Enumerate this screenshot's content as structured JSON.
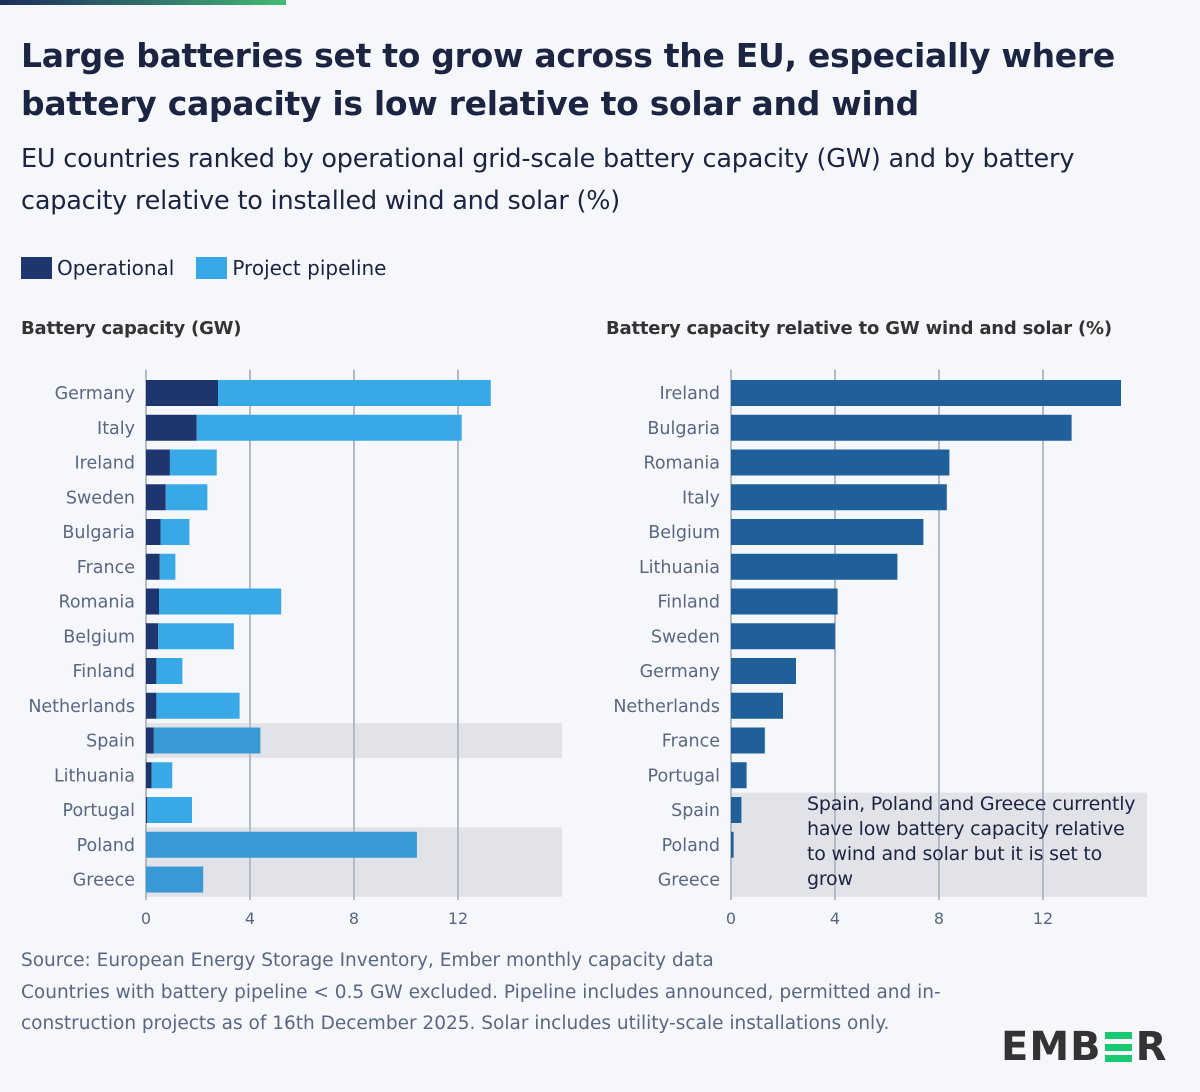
{
  "header": {
    "title": "Large batteries set to grow across the EU, especially where battery capacity is low relative to solar and wind",
    "subtitle": "EU countries ranked by operational grid-scale battery capacity (GW) and by battery capacity relative to installed wind and solar (%)"
  },
  "legend": [
    {
      "label": "Operational",
      "color": "#1f356e"
    },
    {
      "label": "Project pipeline",
      "color": "#38a8e6"
    }
  ],
  "colors": {
    "operational": "#1f356e",
    "pipeline": "#38a8e6",
    "pipeline_highlight": "#3899d4",
    "ratio_bar": "#1f5f9a",
    "highlight_band": "#e1e3e8",
    "gridline": "#b3bac8",
    "accent_green": "#19c971"
  },
  "annotation": "Spain, Poland and Greece currently have low battery capacity relative to wind and solar but it is set to grow",
  "footer": {
    "source": "Source: European Energy Storage Inventory, Ember monthly capacity data",
    "note": "Countries with battery pipeline < 0.5 GW excluded. Pipeline includes announced, permitted and in-construction projects as of 16th December 2025. Solar includes utility-scale installations only.",
    "logo": {
      "prefix": "EMB",
      "suffix": "R"
    }
  },
  "chart_data": [
    {
      "type": "bar",
      "orientation": "horizontal",
      "stacked": true,
      "title": "Battery capacity (GW)",
      "xlabel": "",
      "ylabel": "",
      "xlim": [
        0,
        16
      ],
      "xticks": [
        0,
        4,
        8,
        12
      ],
      "grid": true,
      "highlighted": [
        "Spain",
        "Poland",
        "Greece"
      ],
      "categories": [
        "Germany",
        "Italy",
        "Ireland",
        "Sweden",
        "Bulgaria",
        "France",
        "Romania",
        "Belgium",
        "Finland",
        "Netherlands",
        "Spain",
        "Lithuania",
        "Portugal",
        "Poland",
        "Greece"
      ],
      "series": [
        {
          "name": "Operational",
          "values": [
            2.77,
            1.95,
            0.92,
            0.76,
            0.56,
            0.53,
            0.5,
            0.47,
            0.4,
            0.4,
            0.3,
            0.22,
            0.05,
            0.0,
            0.0
          ]
        },
        {
          "name": "Project pipeline",
          "values": [
            10.49,
            10.19,
            1.8,
            1.6,
            1.11,
            0.6,
            4.7,
            2.91,
            1.0,
            3.2,
            4.1,
            0.79,
            1.72,
            10.42,
            2.2
          ]
        }
      ]
    },
    {
      "type": "bar",
      "orientation": "horizontal",
      "title": "Battery capacity relative to GW wind and solar (%)",
      "xlabel": "",
      "ylabel": "",
      "xlim": [
        0,
        16
      ],
      "xticks": [
        0,
        4,
        8,
        12
      ],
      "grid": true,
      "highlighted": [
        "Spain",
        "Poland",
        "Greece"
      ],
      "categories": [
        "Ireland",
        "Bulgaria",
        "Romania",
        "Italy",
        "Belgium",
        "Lithuania",
        "Finland",
        "Sweden",
        "Germany",
        "Netherlands",
        "France",
        "Portugal",
        "Spain",
        "Poland",
        "Greece"
      ],
      "values": [
        15.0,
        13.1,
        8.4,
        8.3,
        7.4,
        6.4,
        4.1,
        4.0,
        2.5,
        2.0,
        1.3,
        0.6,
        0.4,
        0.1,
        0.0
      ]
    }
  ]
}
